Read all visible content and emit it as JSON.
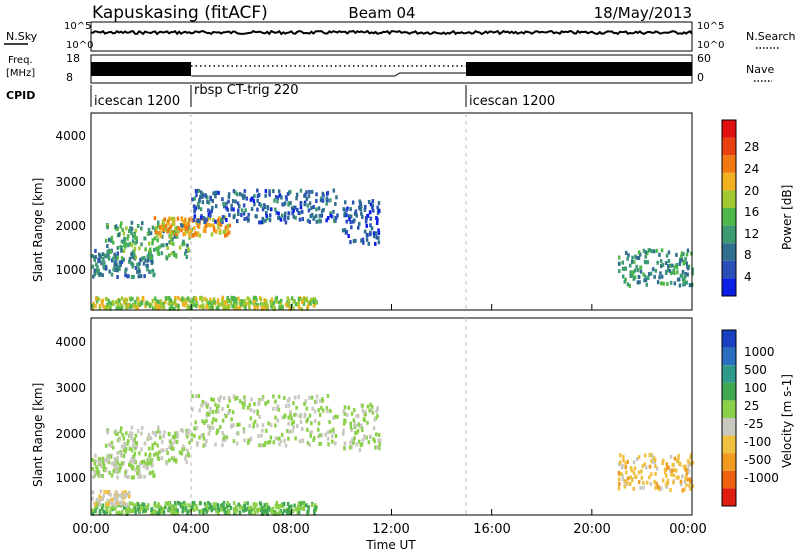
{
  "header": {
    "station": "Kapuskasing (fitACF)",
    "beam": "Beam 04",
    "date": "18/May/2013"
  },
  "noise_panel": {
    "left_label": "N.Sky",
    "right_label": "N.Search",
    "left_ticks": [
      "10^5",
      "10^0"
    ],
    "right_ticks": [
      "10^5",
      "10^0"
    ]
  },
  "freq_panel": {
    "left_label_1": "Freq.",
    "left_label_2": "[MHz]",
    "right_label": "Nave",
    "left_ticks": [
      "18",
      "8"
    ],
    "right_ticks": [
      "60",
      "0"
    ]
  },
  "cpid": {
    "label": "CPID",
    "segments": [
      {
        "name": "icescan 1200",
        "start_hour": 0.0,
        "end_hour": 4.0
      },
      {
        "name": "rbsp CT-trig 220",
        "start_hour": 4.0,
        "end_hour": 15.1
      },
      {
        "name": "icescan 1200",
        "start_hour": 15.1,
        "end_hour": 24.0
      }
    ]
  },
  "power_panel": {
    "ylabel": "Slant Range [km]",
    "yticks": [
      "1000",
      "2000",
      "3000",
      "4000"
    ],
    "colorbar_label": "Power [dB]",
    "colorbar_ticks": [
      "28",
      "24",
      "20",
      "16",
      "12",
      "8",
      "4"
    ],
    "colors": [
      "#0a1ee6",
      "#2a4fb8",
      "#2f6e8e",
      "#3c9a72",
      "#4fb84a",
      "#a0c830",
      "#f0b020",
      "#f07a10",
      "#e84010",
      "#e01010"
    ]
  },
  "velocity_panel": {
    "ylabel": "Slant Range [km]",
    "yticks": [
      "1000",
      "2000",
      "3000",
      "4000"
    ],
    "colorbar_label": "Velocity [m s-1]",
    "colorbar_ticks": [
      "1000",
      "500",
      "100",
      "25",
      "-25",
      "-100",
      "-500",
      "-1000"
    ],
    "colors": [
      "#1a3fc0",
      "#2a6ec0",
      "#2f9a8a",
      "#3fa850",
      "#8ad048",
      "#c8c8c0",
      "#f0c040",
      "#f09a20",
      "#ec6010",
      "#e01c10"
    ]
  },
  "xaxis": {
    "label": "Time UT",
    "ticks": [
      "00:00",
      "04:00",
      "08:00",
      "12:00",
      "16:00",
      "20:00",
      "00:00"
    ]
  },
  "chart_data": [
    {
      "type": "line",
      "title": "N.Sky / N.Search",
      "x_range": [
        0,
        24
      ],
      "note": "noise level roughly constant near 10^5"
    },
    {
      "type": "line",
      "title": "Freq. / Nave",
      "x_range": [
        0,
        24
      ],
      "freq_ylim": [
        8,
        18
      ],
      "nave_ylim": [
        0,
        60
      ]
    },
    {
      "type": "heatmap",
      "title": "Power [dB]",
      "xlabel": "Time UT",
      "ylabel": "Slant Range [km]",
      "xlim": [
        0,
        24
      ],
      "ylim": [
        180,
        4500
      ],
      "clim": [
        0,
        30
      ],
      "regions": [
        {
          "t0": 0.0,
          "t1": 2.5,
          "r0": 900,
          "r1": 1500,
          "value": 8
        },
        {
          "t0": 0.5,
          "t1": 4.0,
          "r0": 1300,
          "r1": 2100,
          "value": 12
        },
        {
          "t0": 2.5,
          "t1": 5.5,
          "r0": 1800,
          "r1": 2200,
          "value": 20
        },
        {
          "t0": 4.0,
          "t1": 9.8,
          "r0": 2100,
          "r1": 2800,
          "value": 6
        },
        {
          "t0": 10.0,
          "t1": 11.5,
          "r0": 1600,
          "r1": 2600,
          "value": 5
        },
        {
          "t0": 21.0,
          "t1": 24.0,
          "r0": 700,
          "r1": 1500,
          "value": 10
        },
        {
          "t0": 0.0,
          "t1": 9.0,
          "r0": 200,
          "r1": 450,
          "value": 16
        }
      ]
    },
    {
      "type": "heatmap",
      "title": "Velocity [m s-1]",
      "xlabel": "Time UT",
      "ylabel": "Slant Range [km]",
      "xlim": [
        0,
        24
      ],
      "ylim": [
        180,
        4500
      ],
      "clim": [
        -1000,
        1000
      ],
      "regions": [
        {
          "t0": 0.0,
          "t1": 2.5,
          "r0": 1000,
          "r1": 1500,
          "value": 0
        },
        {
          "t0": 0.5,
          "t1": 4.0,
          "r0": 1300,
          "r1": 2100,
          "value": 0
        },
        {
          "t0": 4.0,
          "t1": 9.8,
          "r0": 1700,
          "r1": 2800,
          "value": 0
        },
        {
          "t0": 10.0,
          "t1": 11.5,
          "r0": 1600,
          "r1": 2600,
          "value": 0
        },
        {
          "t0": 21.0,
          "t1": 24.0,
          "r0": 700,
          "r1": 1500,
          "value": -300
        },
        {
          "t0": 0.0,
          "t1": 9.0,
          "r0": 200,
          "r1": 450,
          "value": 200
        },
        {
          "t0": 0.0,
          "t1": 1.5,
          "r0": 400,
          "r1": 700,
          "value": -150
        }
      ]
    }
  ]
}
